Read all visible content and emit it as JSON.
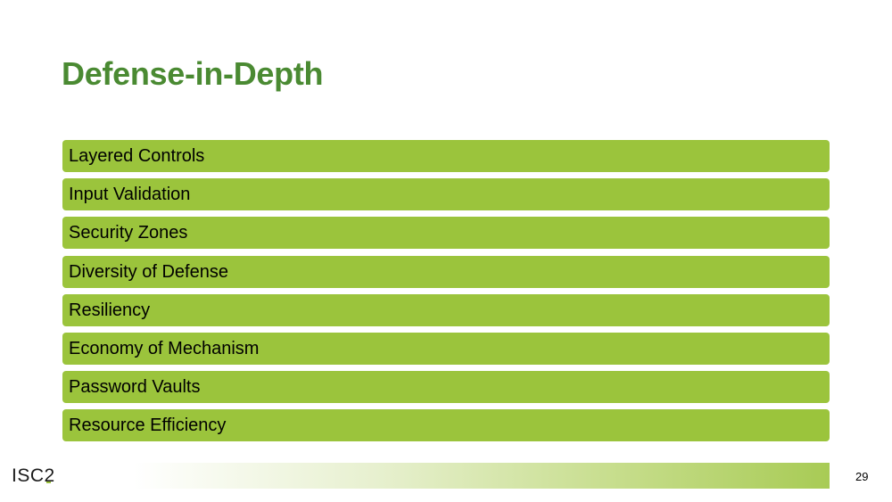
{
  "slide": {
    "title": "Defense-in-Depth",
    "items": [
      {
        "label": "Layered Controls"
      },
      {
        "label": "Input Validation"
      },
      {
        "label": "Security Zones"
      },
      {
        "label": "Diversity of Defense"
      },
      {
        "label": "Resiliency"
      },
      {
        "label": "Economy of Mechanism"
      },
      {
        "label": "Password Vaults"
      },
      {
        "label": "Resource Efficiency"
      }
    ]
  },
  "footer": {
    "logo_text": "ISC2",
    "page_number": "29"
  },
  "colors": {
    "title": "#4a8a32",
    "item_background": "#9bc43c",
    "footer_gradient_end": "#a8cb55"
  }
}
